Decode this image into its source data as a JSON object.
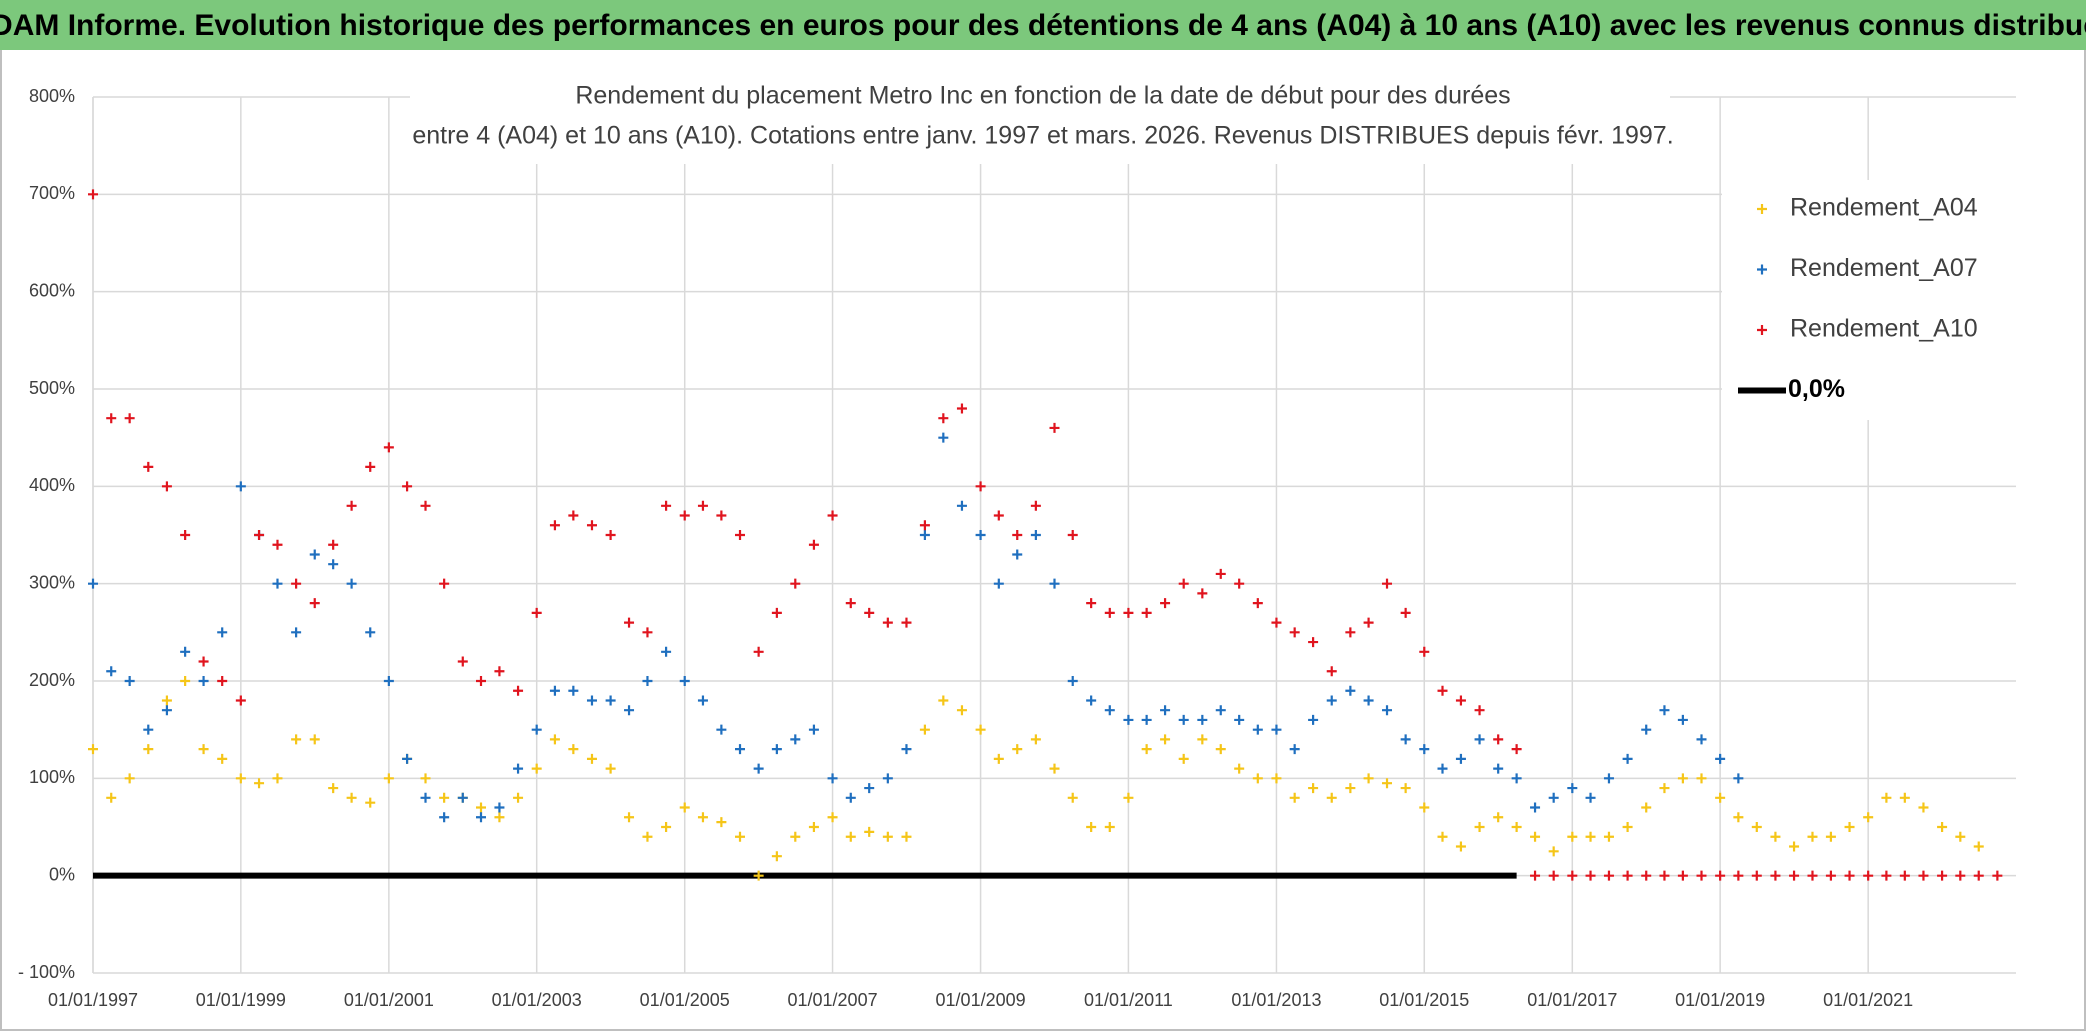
{
  "chart_data": {
    "type": "scatter",
    "header": "ADAM Informe. Evolution historique des performances en euros pour des détentions de 4 ans (A04) à 10 ans (A10) avec les revenus connus distribués",
    "title": "Rendement du placement Metro Inc en fonction de la date de début pour des durées",
    "subtitle": "entre 4 (A04) et 10 ans (A10). Cotations entre janv. 1997 et mars. 2026. Revenus DISTRIBUES depuis févr. 1997.",
    "x": [
      "01/01/1997",
      "01/04/1997",
      "01/07/1997",
      "01/10/1997",
      "01/01/1998",
      "01/04/1998",
      "01/07/1998",
      "01/10/1998",
      "01/01/1999",
      "01/04/1999",
      "01/07/1999",
      "01/10/1999",
      "01/01/2000",
      "01/04/2000",
      "01/07/2000",
      "01/10/2000",
      "01/01/2001",
      "01/04/2001",
      "01/07/2001",
      "01/10/2001",
      "01/01/2002",
      "01/04/2002",
      "01/07/2002",
      "01/10/2002",
      "01/01/2003",
      "01/04/2003",
      "01/07/2003",
      "01/10/2003",
      "01/01/2004",
      "01/04/2004",
      "01/07/2004",
      "01/10/2004",
      "01/01/2005",
      "01/04/2005",
      "01/07/2005",
      "01/10/2005",
      "01/01/2006",
      "01/04/2006",
      "01/07/2006",
      "01/10/2006",
      "01/01/2007",
      "01/04/2007",
      "01/07/2007",
      "01/10/2007",
      "01/01/2008",
      "01/04/2008",
      "01/07/2008",
      "01/10/2008",
      "01/01/2009",
      "01/04/2009",
      "01/07/2009",
      "01/10/2009",
      "01/01/2010",
      "01/04/2010",
      "01/07/2010",
      "01/10/2010",
      "01/01/2011",
      "01/04/2011",
      "01/07/2011",
      "01/10/2011",
      "01/01/2012",
      "01/04/2012",
      "01/07/2012",
      "01/10/2012",
      "01/01/2013",
      "01/04/2013",
      "01/07/2013",
      "01/10/2013",
      "01/01/2014",
      "01/04/2014",
      "01/07/2014",
      "01/10/2014",
      "01/01/2015",
      "01/04/2015",
      "01/07/2015",
      "01/10/2015",
      "01/01/2016",
      "01/04/2016",
      "01/07/2016",
      "01/10/2016",
      "01/01/2017",
      "01/04/2017",
      "01/07/2017",
      "01/10/2017",
      "01/01/2018",
      "01/04/2018",
      "01/07/2018",
      "01/10/2018",
      "01/01/2019",
      "01/04/2019",
      "01/07/2019",
      "01/10/2019",
      "01/01/2020",
      "01/04/2020",
      "01/07/2020",
      "01/10/2020",
      "01/01/2021",
      "01/04/2021",
      "01/07/2021",
      "01/10/2021",
      "01/01/2022",
      "01/04/2022",
      "01/07/2022",
      "01/10/2022"
    ],
    "series": [
      {
        "name": "Rendement_A04",
        "color": "#f5c518",
        "values": [
          130,
          80,
          100,
          130,
          180,
          200,
          130,
          120,
          100,
          95,
          100,
          140,
          140,
          90,
          80,
          75,
          100,
          120,
          100,
          80,
          80,
          70,
          60,
          80,
          110,
          140,
          130,
          120,
          110,
          60,
          40,
          50,
          70,
          60,
          55,
          40,
          0,
          20,
          40,
          50,
          60,
          40,
          45,
          40,
          40,
          150,
          180,
          170,
          150,
          120,
          130,
          140,
          110,
          80,
          50,
          50,
          80,
          130,
          140,
          120,
          140,
          130,
          110,
          100,
          100,
          80,
          90,
          80,
          90,
          100,
          95,
          90,
          70,
          40,
          30,
          50,
          60,
          50,
          40,
          25,
          40,
          40,
          40,
          50,
          70,
          90,
          100,
          100,
          80,
          60,
          50,
          40,
          30,
          40,
          40,
          50,
          60,
          80,
          80,
          70,
          50,
          40,
          30,
          null
        ]
      },
      {
        "name": "Rendement_A07",
        "color": "#1f6fbf",
        "values": [
          300,
          210,
          200,
          150,
          170,
          230,
          200,
          250,
          400,
          350,
          300,
          250,
          330,
          320,
          300,
          250,
          200,
          120,
          80,
          60,
          80,
          60,
          70,
          110,
          150,
          190,
          190,
          180,
          180,
          170,
          200,
          230,
          200,
          180,
          150,
          130,
          110,
          130,
          140,
          150,
          100,
          80,
          90,
          100,
          130,
          350,
          450,
          380,
          350,
          300,
          330,
          350,
          300,
          200,
          180,
          170,
          160,
          160,
          170,
          160,
          160,
          170,
          160,
          150,
          150,
          130,
          160,
          180,
          190,
          180,
          170,
          140,
          130,
          110,
          120,
          140,
          110,
          100,
          70,
          80,
          90,
          80,
          100,
          120,
          150,
          170,
          160,
          140,
          120,
          100,
          null,
          null,
          null,
          null,
          null,
          null,
          null,
          null,
          null,
          null,
          null,
          null,
          null,
          null
        ]
      },
      {
        "name": "Rendement_A10",
        "color": "#e0141e",
        "values": [
          700,
          470,
          470,
          420,
          400,
          350,
          220,
          200,
          180,
          350,
          340,
          300,
          280,
          340,
          380,
          420,
          440,
          400,
          380,
          300,
          220,
          200,
          210,
          190,
          270,
          360,
          370,
          360,
          350,
          260,
          250,
          380,
          370,
          380,
          370,
          350,
          230,
          270,
          300,
          340,
          370,
          280,
          270,
          260,
          260,
          360,
          470,
          480,
          400,
          370,
          350,
          380,
          460,
          350,
          280,
          270,
          270,
          270,
          280,
          300,
          290,
          310,
          300,
          280,
          260,
          250,
          240,
          210,
          250,
          260,
          300,
          270,
          230,
          190,
          180,
          170,
          140,
          130,
          0,
          0,
          0,
          0,
          0,
          0,
          0,
          0,
          0,
          0,
          0,
          0,
          0,
          0,
          0,
          0,
          0,
          0,
          0,
          0,
          0,
          0,
          0,
          0,
          0,
          0
        ]
      },
      {
        "name": "0,0%",
        "type": "line",
        "color": "#000000",
        "values": [
          0,
          0,
          0,
          0,
          0,
          0,
          0,
          0,
          0,
          0,
          0,
          0,
          0,
          0,
          0,
          0,
          0,
          0,
          0,
          0,
          0,
          0,
          0,
          0,
          0,
          0,
          0,
          0,
          0,
          0,
          0,
          0,
          0,
          0,
          0,
          0,
          0,
          0,
          0,
          0,
          0,
          0,
          0,
          0,
          0,
          0,
          0,
          0,
          0,
          0,
          0,
          0,
          0,
          0,
          0,
          0,
          0,
          0,
          0,
          0,
          0,
          0,
          0,
          0,
          0,
          0,
          0,
          0,
          0,
          0,
          0,
          0,
          0,
          0,
          0,
          0,
          0,
          0,
          null,
          null,
          null,
          null,
          null,
          null,
          null,
          null,
          null,
          null,
          null,
          null,
          null,
          null,
          null,
          null,
          null,
          null,
          null,
          null,
          null,
          null,
          null,
          null,
          null,
          null
        ]
      }
    ],
    "xlim": [
      "01/01/1997",
      "01/01/2023"
    ],
    "xticks": [
      "01/01/1997",
      "01/01/1999",
      "01/01/2001",
      "01/01/2003",
      "01/01/2005",
      "01/01/2007",
      "01/01/2009",
      "01/01/2011",
      "01/01/2013",
      "01/01/2015",
      "01/01/2017",
      "01/01/2019",
      "01/01/2021"
    ],
    "ylim": [
      -100,
      800
    ],
    "yticks": [
      {
        "value": -100,
        "label": "- 100%"
      },
      {
        "value": 0,
        "label": "0%"
      },
      {
        "value": 100,
        "label": "100%"
      },
      {
        "value": 200,
        "label": "200%"
      },
      {
        "value": 300,
        "label": "300%"
      },
      {
        "value": 400,
        "label": "400%"
      },
      {
        "value": 500,
        "label": "500%"
      },
      {
        "value": 600,
        "label": "600%"
      },
      {
        "value": 700,
        "label": "700%"
      },
      {
        "value": 800,
        "label": "800%"
      }
    ],
    "grid": true,
    "legend": "upper right"
  }
}
